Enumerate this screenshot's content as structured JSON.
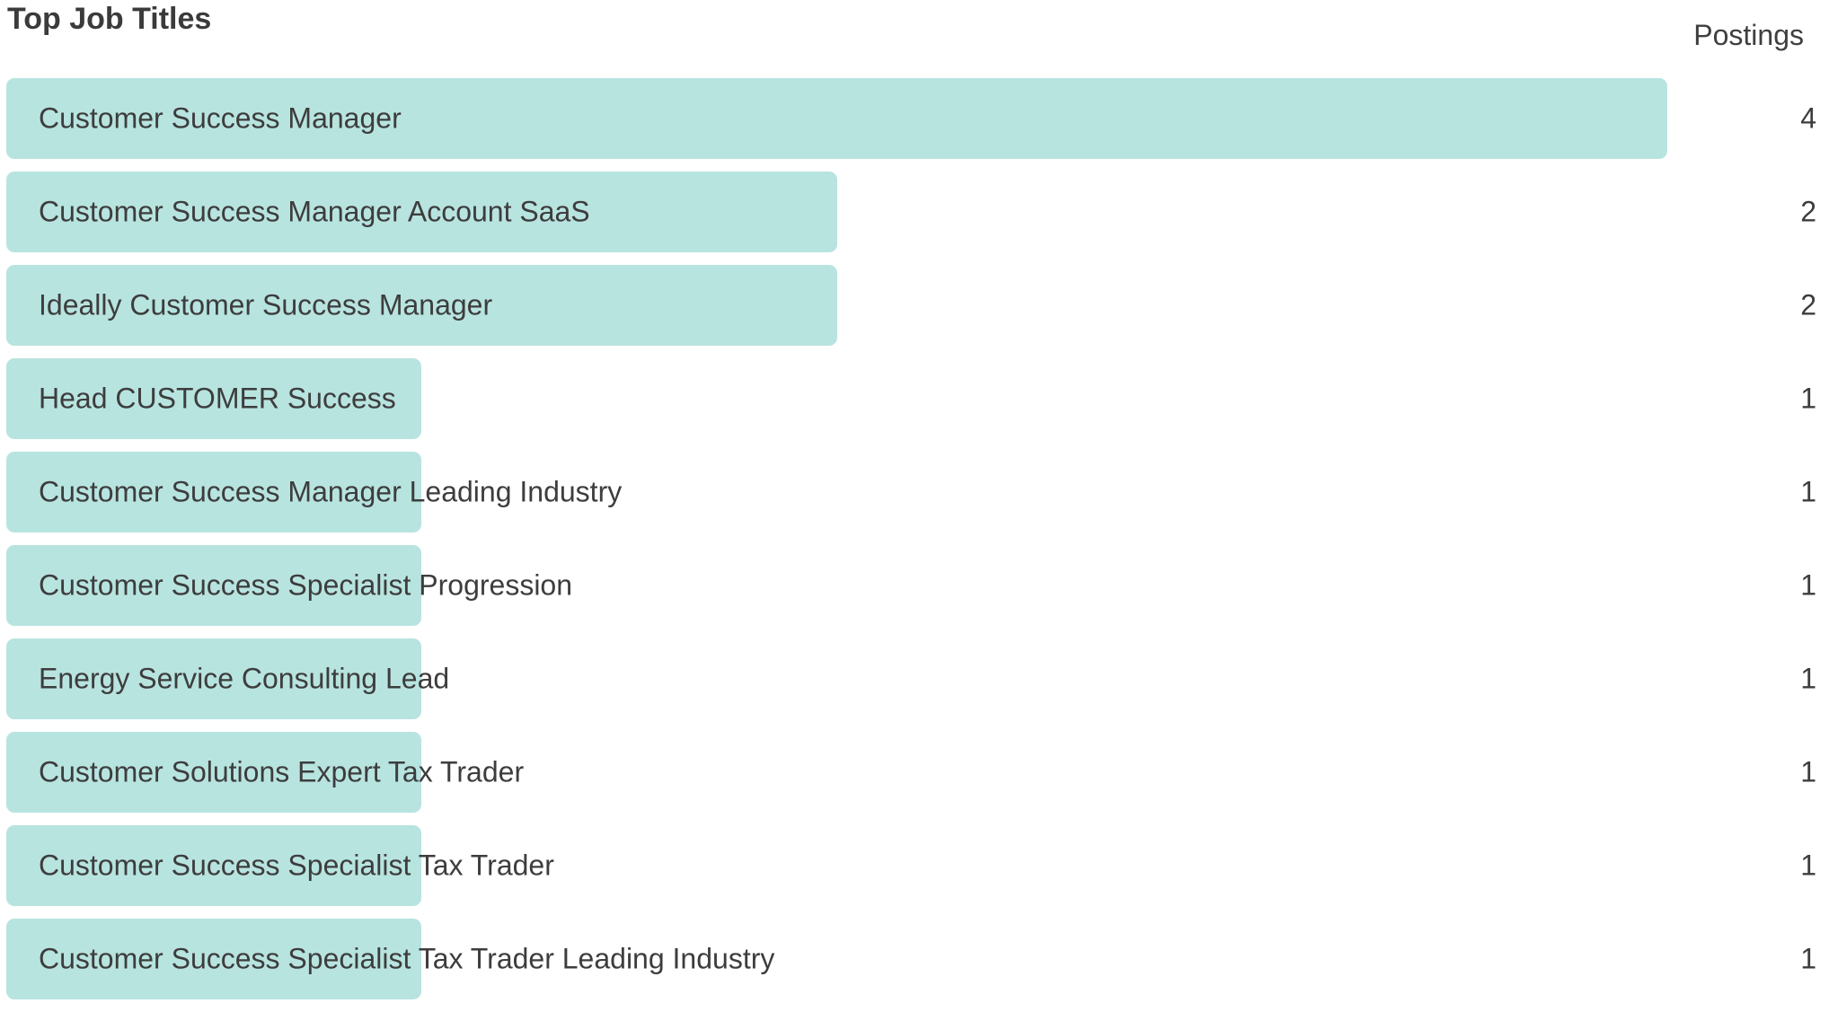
{
  "header": {
    "title": "Top Job Titles",
    "value_column_label": "Postings"
  },
  "chart_data": {
    "type": "bar",
    "orientation": "horizontal",
    "title": "Top Job Titles",
    "value_column_label": "Postings",
    "categories": [
      "Customer Success Manager",
      "Customer Success Manager Account SaaS",
      "Ideally Customer Success Manager",
      "Head CUSTOMER Success",
      "Customer Success Manager Leading Industry",
      "Customer Success Specialist Progression",
      "Energy Service Consulting Lead",
      "Customer Solutions Expert Tax Trader",
      "Customer Success Specialist Tax Trader",
      "Customer Success Specialist Tax Trader Leading Industry"
    ],
    "values": [
      4,
      2,
      2,
      1,
      1,
      1,
      1,
      1,
      1,
      1
    ],
    "xlim": [
      0,
      4
    ],
    "bar_color": "#b8e4e0",
    "label_color": "#3d3d3d",
    "title_color": "#3b3b3b",
    "background_color": "#ffffff",
    "grid": false,
    "legend": false,
    "value_labels_position": "right-column"
  }
}
